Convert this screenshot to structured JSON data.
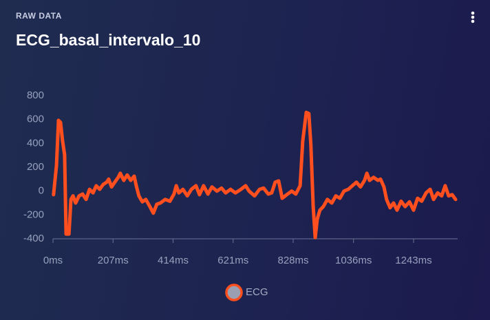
{
  "header": {
    "eyebrow": "RAW DATA"
  },
  "chart_data": {
    "type": "line",
    "title": "ECG_basal_intervalo_10",
    "xlim": [
      0,
      1395
    ],
    "xticks": [
      {
        "value": 0,
        "label": "0ms"
      },
      {
        "value": 207,
        "label": "207ms"
      },
      {
        "value": 414,
        "label": "414ms"
      },
      {
        "value": 621,
        "label": "621ms"
      },
      {
        "value": 828,
        "label": "828ms"
      },
      {
        "value": 1036,
        "label": "1036ms"
      },
      {
        "value": 1243,
        "label": "1243ms"
      }
    ],
    "ylim": [
      -400,
      800
    ],
    "yticks": [
      -400,
      -200,
      0,
      200,
      400,
      600,
      800
    ],
    "grid": false,
    "legend": "bottom",
    "series": [
      {
        "name": "ECG",
        "color": "#ff4f1f",
        "x": [
          2,
          12,
          19,
          26,
          33,
          40,
          45,
          55,
          62,
          69,
          78,
          90,
          102,
          114,
          126,
          138,
          149,
          161,
          173,
          185,
          192,
          202,
          213,
          225,
          232,
          244,
          256,
          268,
          280,
          287,
          296,
          308,
          320,
          334,
          346,
          358,
          370,
          387,
          403,
          417,
          425,
          434,
          448,
          463,
          477,
          493,
          505,
          519,
          534,
          548,
          565,
          581,
          595,
          612,
          629,
          648,
          664,
          676,
          695,
          712,
          726,
          742,
          754,
          766,
          778,
          790,
          806,
          823,
          837,
          852,
          861,
          873,
          882,
          889,
          897,
          904,
          911,
          920,
          932,
          946,
          961,
          975,
          989,
          1003,
          1018,
          1032,
          1046,
          1060,
          1074,
          1082,
          1091,
          1105,
          1120,
          1129,
          1141,
          1150,
          1162,
          1174,
          1186,
          1200,
          1214,
          1229,
          1243,
          1257,
          1271,
          1286,
          1300,
          1312,
          1326,
          1340,
          1352,
          1364,
          1376,
          1388
        ],
        "values": [
          -30,
          217,
          593,
          575,
          420,
          304,
          -360,
          -360,
          -70,
          -40,
          -100,
          -40,
          -25,
          -70,
          15,
          -15,
          45,
          15,
          55,
          75,
          100,
          35,
          75,
          115,
          150,
          90,
          135,
          90,
          125,
          45,
          -40,
          -90,
          -70,
          -130,
          -185,
          -110,
          -100,
          -70,
          -85,
          -25,
          45,
          -15,
          15,
          -40,
          15,
          45,
          -30,
          45,
          -25,
          35,
          0,
          25,
          -15,
          15,
          -15,
          15,
          45,
          0,
          -40,
          15,
          25,
          -25,
          -15,
          75,
          85,
          -60,
          -30,
          0,
          -25,
          45,
          420,
          660,
          650,
          390,
          -130,
          -390,
          -235,
          -160,
          -130,
          -70,
          -100,
          -40,
          -60,
          0,
          15,
          45,
          75,
          35,
          90,
          150,
          90,
          115,
          90,
          100,
          35,
          -70,
          -140,
          -100,
          -160,
          -85,
          -130,
          -90,
          -160,
          -60,
          -85,
          -15,
          15,
          -70,
          -15,
          -40,
          45,
          -40,
          -30,
          -70
        ]
      }
    ]
  }
}
